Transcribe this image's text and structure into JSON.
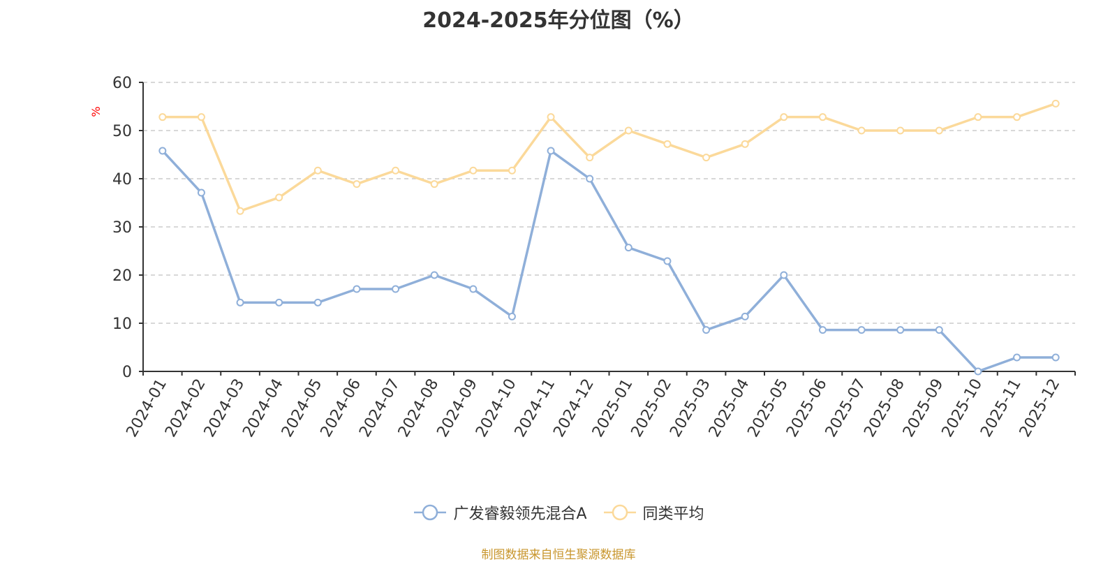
{
  "chart_data": {
    "type": "line",
    "title": "2024-2025年分位图（%）",
    "ylabel": "%",
    "xlabel": "",
    "ylim": [
      0,
      60
    ],
    "yticks": [
      0,
      10,
      20,
      30,
      40,
      50,
      60
    ],
    "grid": true,
    "legend_position": "bottom",
    "categories": [
      "2024-01",
      "2024-02",
      "2024-03",
      "2024-04",
      "2024-05",
      "2024-06",
      "2024-07",
      "2024-08",
      "2024-09",
      "2024-10",
      "2024-11",
      "2024-12",
      "2025-01",
      "2025-02",
      "2025-03",
      "2025-04",
      "2025-05",
      "2025-06",
      "2025-07",
      "2025-08",
      "2025-09",
      "2025-10",
      "2025-11",
      "2025-12"
    ],
    "series": [
      {
        "name": "广发睿毅领先混合A",
        "color": "#8fafd9",
        "values": [
          45.8,
          37.1,
          14.3,
          14.3,
          14.3,
          17.1,
          17.1,
          20.0,
          17.1,
          11.4,
          45.8,
          40.0,
          25.7,
          22.9,
          8.6,
          11.4,
          20.0,
          8.6,
          8.6,
          8.6,
          8.6,
          0.0,
          2.9,
          2.9
        ]
      },
      {
        "name": "同类平均",
        "color": "#fbd99a",
        "values": [
          52.8,
          52.8,
          33.3,
          36.1,
          41.7,
          38.9,
          41.7,
          38.9,
          41.7,
          41.7,
          52.8,
          44.4,
          50.0,
          47.2,
          44.4,
          47.2,
          52.8,
          52.8,
          50.0,
          50.0,
          50.0,
          52.8,
          52.8,
          55.6
        ]
      }
    ]
  },
  "footer": {
    "source": "制图数据来自恒生聚源数据库"
  }
}
